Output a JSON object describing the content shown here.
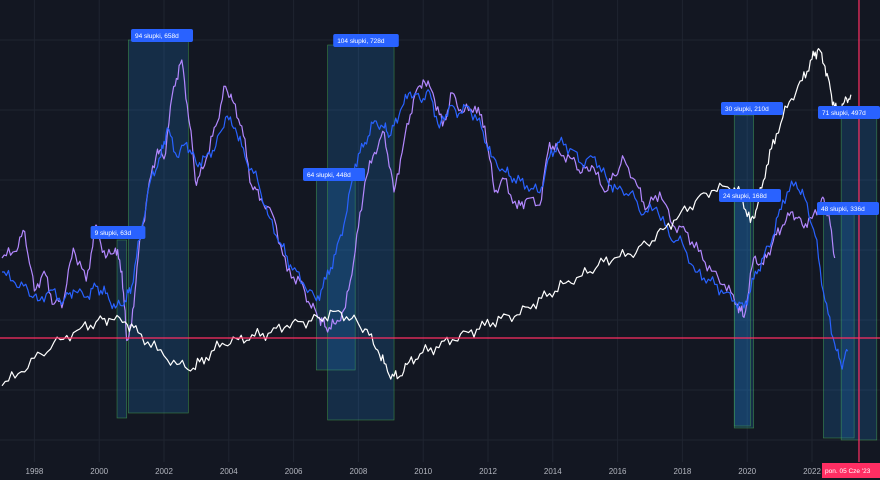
{
  "chart_data": {
    "type": "line",
    "title": "",
    "xlabel": "",
    "ylabel": "",
    "xlim": [
      1997.0,
      2024.0
    ],
    "x_ticks": [
      "1998",
      "2000",
      "2002",
      "2004",
      "2006",
      "2008",
      "2010",
      "2012",
      "2014",
      "2016",
      "2018",
      "2020",
      "2022"
    ],
    "grid": true,
    "series": [
      {
        "key": "purple",
        "color": "#b388ff",
        "points": [
          [
            1997.0,
            0.4
          ],
          [
            1997.4,
            0.42
          ],
          [
            1997.7,
            0.48
          ],
          [
            1998.0,
            0.3
          ],
          [
            1998.3,
            0.36
          ],
          [
            1998.6,
            0.26
          ],
          [
            1998.9,
            0.27
          ],
          [
            1999.2,
            0.43
          ],
          [
            1999.6,
            0.33
          ],
          [
            1999.9,
            0.5
          ],
          [
            2000.2,
            0.4
          ],
          [
            2000.5,
            0.43
          ],
          [
            2000.7,
            0.36
          ],
          [
            2000.85,
            0.15
          ],
          [
            2001.0,
            0.2
          ],
          [
            2001.2,
            0.4
          ],
          [
            2001.5,
            0.6
          ],
          [
            2001.8,
            0.73
          ],
          [
            2002.0,
            0.7
          ],
          [
            2002.3,
            0.92
          ],
          [
            2002.55,
            1.0
          ],
          [
            2002.8,
            0.8
          ],
          [
            2003.0,
            0.62
          ],
          [
            2003.3,
            0.7
          ],
          [
            2003.6,
            0.8
          ],
          [
            2003.9,
            0.92
          ],
          [
            2004.1,
            0.88
          ],
          [
            2004.4,
            0.8
          ],
          [
            2004.7,
            0.62
          ],
          [
            2005.0,
            0.58
          ],
          [
            2005.4,
            0.52
          ],
          [
            2005.8,
            0.36
          ],
          [
            2006.2,
            0.33
          ],
          [
            2006.5,
            0.26
          ],
          [
            2006.8,
            0.22
          ],
          [
            2007.0,
            0.19
          ],
          [
            2007.3,
            0.2
          ],
          [
            2007.6,
            0.25
          ],
          [
            2007.9,
            0.42
          ],
          [
            2008.2,
            0.63
          ],
          [
            2008.5,
            0.72
          ],
          [
            2008.8,
            0.78
          ],
          [
            2009.1,
            0.6
          ],
          [
            2009.4,
            0.75
          ],
          [
            2009.7,
            0.88
          ],
          [
            2010.0,
            0.94
          ],
          [
            2010.3,
            0.9
          ],
          [
            2010.6,
            0.8
          ],
          [
            2010.9,
            0.9
          ],
          [
            2011.2,
            0.84
          ],
          [
            2011.6,
            0.86
          ],
          [
            2011.9,
            0.8
          ],
          [
            2012.2,
            0.6
          ],
          [
            2012.5,
            0.64
          ],
          [
            2012.9,
            0.55
          ],
          [
            2013.2,
            0.58
          ],
          [
            2013.6,
            0.56
          ],
          [
            2013.9,
            0.75
          ],
          [
            2014.2,
            0.72
          ],
          [
            2014.6,
            0.7
          ],
          [
            2014.9,
            0.66
          ],
          [
            2015.2,
            0.68
          ],
          [
            2015.6,
            0.6
          ],
          [
            2015.9,
            0.65
          ],
          [
            2016.2,
            0.7
          ],
          [
            2016.6,
            0.62
          ],
          [
            2016.9,
            0.55
          ],
          [
            2017.3,
            0.6
          ],
          [
            2017.7,
            0.5
          ],
          [
            2018.1,
            0.48
          ],
          [
            2018.5,
            0.42
          ],
          [
            2018.9,
            0.36
          ],
          [
            2019.3,
            0.32
          ],
          [
            2019.7,
            0.26
          ],
          [
            2019.9,
            0.22
          ],
          [
            2020.2,
            0.4
          ],
          [
            2020.5,
            0.38
          ],
          [
            2020.8,
            0.45
          ],
          [
            2021.1,
            0.5
          ],
          [
            2021.4,
            0.54
          ],
          [
            2021.7,
            0.5
          ],
          [
            2022.0,
            0.52
          ],
          [
            2022.3,
            0.58
          ],
          [
            2022.5,
            0.54
          ],
          [
            2022.7,
            0.4
          ]
        ]
      },
      {
        "key": "blue",
        "color": "#2962ff",
        "points": [
          [
            1997.0,
            0.3
          ],
          [
            1997.4,
            0.27
          ],
          [
            1997.8,
            0.25
          ],
          [
            1998.1,
            0.22
          ],
          [
            1998.5,
            0.25
          ],
          [
            1998.9,
            0.22
          ],
          [
            1999.2,
            0.25
          ],
          [
            1999.6,
            0.23
          ],
          [
            1999.9,
            0.26
          ],
          [
            2000.2,
            0.24
          ],
          [
            2000.5,
            0.2
          ],
          [
            2000.8,
            0.22
          ],
          [
            2001.0,
            0.26
          ],
          [
            2001.3,
            0.42
          ],
          [
            2001.6,
            0.56
          ],
          [
            2001.9,
            0.62
          ],
          [
            2002.1,
            0.7
          ],
          [
            2002.4,
            0.62
          ],
          [
            2002.7,
            0.66
          ],
          [
            2003.0,
            0.6
          ],
          [
            2003.3,
            0.62
          ],
          [
            2003.6,
            0.65
          ],
          [
            2003.9,
            0.73
          ],
          [
            2004.2,
            0.7
          ],
          [
            2004.5,
            0.62
          ],
          [
            2004.9,
            0.55
          ],
          [
            2005.2,
            0.46
          ],
          [
            2005.6,
            0.38
          ],
          [
            2005.9,
            0.32
          ],
          [
            2006.3,
            0.27
          ],
          [
            2006.7,
            0.22
          ],
          [
            2007.0,
            0.28
          ],
          [
            2007.3,
            0.35
          ],
          [
            2007.6,
            0.45
          ],
          [
            2007.9,
            0.6
          ],
          [
            2008.2,
            0.66
          ],
          [
            2008.5,
            0.72
          ],
          [
            2008.8,
            0.7
          ],
          [
            2009.0,
            0.68
          ],
          [
            2009.3,
            0.75
          ],
          [
            2009.6,
            0.8
          ],
          [
            2009.9,
            0.78
          ],
          [
            2010.2,
            0.8
          ],
          [
            2010.5,
            0.7
          ],
          [
            2010.8,
            0.76
          ],
          [
            2011.1,
            0.74
          ],
          [
            2011.4,
            0.76
          ],
          [
            2011.8,
            0.7
          ],
          [
            2012.1,
            0.62
          ],
          [
            2012.5,
            0.58
          ],
          [
            2012.8,
            0.56
          ],
          [
            2013.2,
            0.54
          ],
          [
            2013.6,
            0.52
          ],
          [
            2013.9,
            0.62
          ],
          [
            2014.2,
            0.66
          ],
          [
            2014.6,
            0.64
          ],
          [
            2014.9,
            0.6
          ],
          [
            2015.3,
            0.62
          ],
          [
            2015.7,
            0.55
          ],
          [
            2016.0,
            0.53
          ],
          [
            2016.4,
            0.52
          ],
          [
            2016.8,
            0.46
          ],
          [
            2017.2,
            0.48
          ],
          [
            2017.6,
            0.4
          ],
          [
            2018.0,
            0.38
          ],
          [
            2018.4,
            0.3
          ],
          [
            2018.8,
            0.28
          ],
          [
            2019.2,
            0.25
          ],
          [
            2019.6,
            0.22
          ],
          [
            2019.9,
            0.2
          ],
          [
            2020.2,
            0.28
          ],
          [
            2020.5,
            0.34
          ],
          [
            2020.8,
            0.4
          ],
          [
            2021.1,
            0.5
          ],
          [
            2021.5,
            0.55
          ],
          [
            2021.8,
            0.5
          ],
          [
            2022.1,
            0.4
          ],
          [
            2022.4,
            0.22
          ],
          [
            2022.7,
            0.1
          ],
          [
            2022.9,
            0.04
          ],
          [
            2023.1,
            0.08
          ]
        ]
      },
      {
        "key": "white",
        "color": "#ffffff",
        "points": [
          [
            1997.0,
            0.04
          ],
          [
            1997.6,
            0.08
          ],
          [
            1998.2,
            0.13
          ],
          [
            1998.8,
            0.17
          ],
          [
            1999.4,
            0.2
          ],
          [
            1999.9,
            0.22
          ],
          [
            2000.3,
            0.23
          ],
          [
            2000.8,
            0.22
          ],
          [
            2001.2,
            0.19
          ],
          [
            2001.8,
            0.14
          ],
          [
            2002.4,
            0.1
          ],
          [
            2002.9,
            0.09
          ],
          [
            2003.3,
            0.12
          ],
          [
            2003.8,
            0.16
          ],
          [
            2004.3,
            0.17
          ],
          [
            2004.8,
            0.18
          ],
          [
            2005.3,
            0.19
          ],
          [
            2005.8,
            0.21
          ],
          [
            2006.3,
            0.22
          ],
          [
            2006.8,
            0.23
          ],
          [
            2007.3,
            0.25
          ],
          [
            2007.8,
            0.23
          ],
          [
            2008.2,
            0.2
          ],
          [
            2008.6,
            0.14
          ],
          [
            2008.9,
            0.08
          ],
          [
            2009.2,
            0.06
          ],
          [
            2009.5,
            0.1
          ],
          [
            2009.9,
            0.13
          ],
          [
            2010.4,
            0.15
          ],
          [
            2010.9,
            0.17
          ],
          [
            2011.4,
            0.19
          ],
          [
            2011.9,
            0.21
          ],
          [
            2012.4,
            0.23
          ],
          [
            2012.9,
            0.24
          ],
          [
            2013.4,
            0.27
          ],
          [
            2013.9,
            0.3
          ],
          [
            2014.4,
            0.33
          ],
          [
            2014.9,
            0.35
          ],
          [
            2015.4,
            0.38
          ],
          [
            2015.9,
            0.4
          ],
          [
            2016.4,
            0.41
          ],
          [
            2016.9,
            0.44
          ],
          [
            2017.4,
            0.48
          ],
          [
            2017.9,
            0.52
          ],
          [
            2018.4,
            0.56
          ],
          [
            2018.9,
            0.59
          ],
          [
            2019.4,
            0.6
          ],
          [
            2019.8,
            0.58
          ],
          [
            2020.1,
            0.5
          ],
          [
            2020.3,
            0.54
          ],
          [
            2020.6,
            0.66
          ],
          [
            2020.9,
            0.75
          ],
          [
            2021.3,
            0.84
          ],
          [
            2021.7,
            0.9
          ],
          [
            2022.0,
            0.96
          ],
          [
            2022.2,
            0.99
          ],
          [
            2022.4,
            0.94
          ],
          [
            2022.6,
            0.86
          ],
          [
            2022.8,
            0.8
          ],
          [
            2023.0,
            0.84
          ],
          [
            2023.2,
            0.86
          ]
        ]
      }
    ],
    "zones": [
      {
        "label": "9 słupki, 63d",
        "x0": 2000.55,
        "x1": 2000.85
      },
      {
        "label": "94 słupki, 658d",
        "x0": 2000.9,
        "x1": 2002.75
      },
      {
        "label": "64 słupki, 448d",
        "x0": 2006.7,
        "x1": 2007.9
      },
      {
        "label": "104 słupki, 728d",
        "x0": 2007.05,
        "x1": 2009.1
      },
      {
        "label": "30 słupki, 210d",
        "x0": 2019.6,
        "x1": 2020.2
      },
      {
        "label": "24 słupki, 168d",
        "x0": 2019.6,
        "x1": 2020.1
      },
      {
        "label": "48 słupki, 336d",
        "x0": 2022.35,
        "x1": 2023.3
      },
      {
        "label": "71 słupki, 497d",
        "x0": 2022.9,
        "x1": 2024.0
      }
    ],
    "current_label": "pon. 05 Cze '23",
    "current_x": 2023.45,
    "colors": {
      "background": "#131722",
      "grid": "#1f2430",
      "hline": "#ff2e63",
      "vline": "#ff2e63",
      "zone": "#2196f3",
      "zone_edge": "#4caf50",
      "label_bg": "#2962ff"
    }
  }
}
